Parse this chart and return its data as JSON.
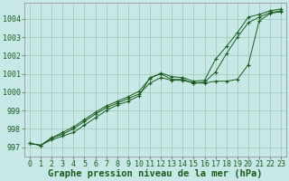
{
  "xlabel": "Graphe pression niveau de la mer (hPa)",
  "bg_color": "#c8e8e8",
  "grid_color": "#a0c8b0",
  "line_color": "#1a5c1a",
  "hours": [
    0,
    1,
    2,
    3,
    4,
    5,
    6,
    7,
    8,
    9,
    10,
    11,
    12,
    13,
    14,
    15,
    16,
    17,
    18,
    19,
    20,
    21,
    22,
    23
  ],
  "series1": [
    997.2,
    997.1,
    997.4,
    997.6,
    997.8,
    998.2,
    998.6,
    999.0,
    999.3,
    999.5,
    999.8,
    1000.8,
    1001.0,
    1000.7,
    1000.7,
    1000.5,
    1000.5,
    1000.6,
    1000.6,
    1000.7,
    1001.5,
    1003.9,
    1004.3,
    1004.4
  ],
  "series2": [
    997.2,
    997.1,
    997.5,
    997.7,
    998.0,
    998.4,
    998.8,
    999.15,
    999.4,
    999.65,
    999.9,
    1000.5,
    1000.8,
    1000.65,
    1000.65,
    1000.5,
    1000.55,
    1001.1,
    1002.1,
    1003.0,
    1003.8,
    1004.1,
    1004.35,
    1004.45
  ],
  "series3": [
    997.2,
    997.1,
    997.5,
    997.8,
    998.1,
    998.5,
    998.9,
    999.25,
    999.5,
    999.75,
    1000.05,
    1000.75,
    1001.05,
    1000.85,
    1000.8,
    1000.6,
    1000.65,
    1001.8,
    1002.5,
    1003.25,
    1004.1,
    1004.25,
    1004.45,
    1004.55
  ],
  "ylim": [
    996.5,
    1004.9
  ],
  "yticks": [
    997,
    998,
    999,
    1000,
    1001,
    1002,
    1003,
    1004
  ],
  "xlim": [
    -0.5,
    23.5
  ],
  "xticks": [
    0,
    1,
    2,
    3,
    4,
    5,
    6,
    7,
    8,
    9,
    10,
    11,
    12,
    13,
    14,
    15,
    16,
    17,
    18,
    19,
    20,
    21,
    22,
    23
  ],
  "xtick_labels": [
    "0",
    "1",
    "2",
    "3",
    "4",
    "5",
    "6",
    "7",
    "8",
    "9",
    "10",
    "11",
    "12",
    "13",
    "14",
    "15",
    "16",
    "17",
    "18",
    "19",
    "20",
    "21",
    "22",
    "23"
  ],
  "xlabel_fontsize": 7.5,
  "tick_fontsize": 6,
  "marker": "+",
  "marker_size": 3.5,
  "linewidth": 0.7
}
